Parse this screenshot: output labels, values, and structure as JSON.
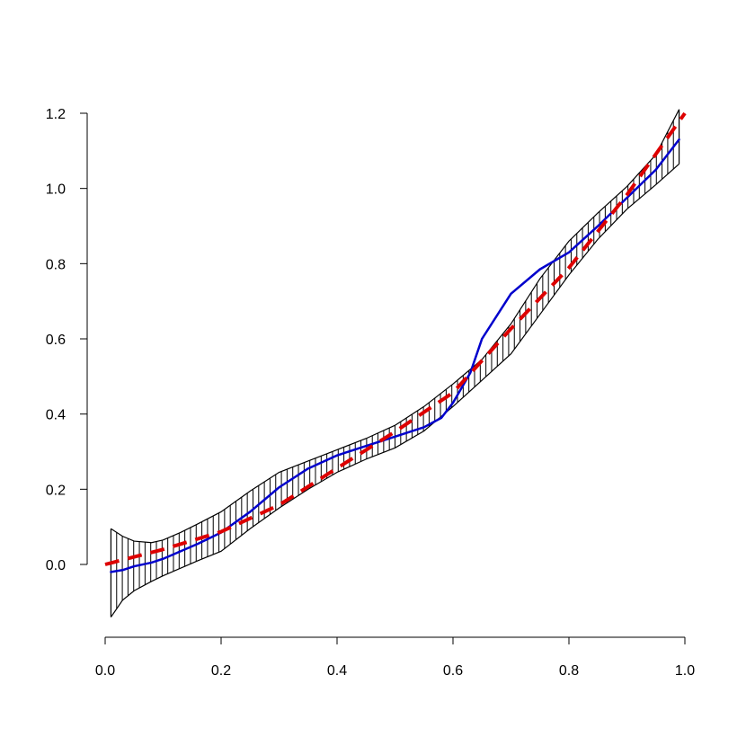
{
  "chart_data": {
    "type": "line",
    "title": "",
    "xlabel": "",
    "ylabel": "",
    "xlim": [
      0.0,
      1.0
    ],
    "ylim": [
      -0.14,
      1.22
    ],
    "x_ticks": [
      0.0,
      0.2,
      0.4,
      0.6,
      0.8,
      1.0
    ],
    "x_tick_labels": [
      "0.0",
      "0.2",
      "0.4",
      "0.6",
      "0.8",
      "1.0"
    ],
    "y_ticks": [
      0.0,
      0.2,
      0.4,
      0.6,
      0.8,
      1.0,
      1.2
    ],
    "y_tick_labels": [
      "0.0",
      "0.2",
      "0.4",
      "0.6",
      "0.8",
      "1.0",
      "1.2"
    ],
    "grid": false,
    "legend": "none",
    "band": {
      "fill": "vertical-hatch",
      "color": "#000000",
      "x": [
        0.01,
        0.03,
        0.05,
        0.08,
        0.1,
        0.13,
        0.16,
        0.2,
        0.25,
        0.3,
        0.35,
        0.4,
        0.45,
        0.5,
        0.55,
        0.6,
        0.65,
        0.7,
        0.75,
        0.8,
        0.85,
        0.9,
        0.95,
        0.99
      ],
      "upper": [
        0.095,
        0.075,
        0.062,
        0.058,
        0.065,
        0.085,
        0.108,
        0.14,
        0.195,
        0.245,
        0.275,
        0.305,
        0.335,
        0.37,
        0.42,
        0.48,
        0.545,
        0.64,
        0.76,
        0.86,
        0.935,
        1.005,
        1.09,
        1.21
      ],
      "lower": [
        -0.14,
        -0.095,
        -0.07,
        -0.045,
        -0.03,
        -0.01,
        0.01,
        0.035,
        0.095,
        0.15,
        0.2,
        0.245,
        0.28,
        0.31,
        0.355,
        0.42,
        0.49,
        0.56,
        0.665,
        0.77,
        0.865,
        0.945,
        1.01,
        1.065
      ]
    },
    "series": [
      {
        "color": "#0000cc",
        "style": "solid",
        "x": [
          0.01,
          0.03,
          0.05,
          0.08,
          0.1,
          0.13,
          0.16,
          0.2,
          0.25,
          0.3,
          0.35,
          0.4,
          0.45,
          0.5,
          0.55,
          0.58,
          0.6,
          0.63,
          0.65,
          0.7,
          0.75,
          0.8,
          0.85,
          0.9,
          0.95,
          0.99
        ],
        "y": [
          -0.02,
          -0.015,
          -0.005,
          0.005,
          0.015,
          0.035,
          0.055,
          0.085,
          0.14,
          0.205,
          0.255,
          0.29,
          0.315,
          0.34,
          0.365,
          0.39,
          0.43,
          0.51,
          0.6,
          0.72,
          0.785,
          0.83,
          0.9,
          0.975,
          1.05,
          1.13
        ]
      },
      {
        "color": "#dd0000",
        "style": "dashed",
        "x": [
          0.0,
          0.1,
          0.2,
          0.3,
          0.4,
          0.5,
          0.6,
          0.7,
          0.8,
          0.9,
          1.0
        ],
        "y": [
          0.0,
          0.04,
          0.087,
          0.158,
          0.256,
          0.353,
          0.457,
          0.627,
          0.789,
          0.983,
          1.2
        ]
      }
    ]
  }
}
